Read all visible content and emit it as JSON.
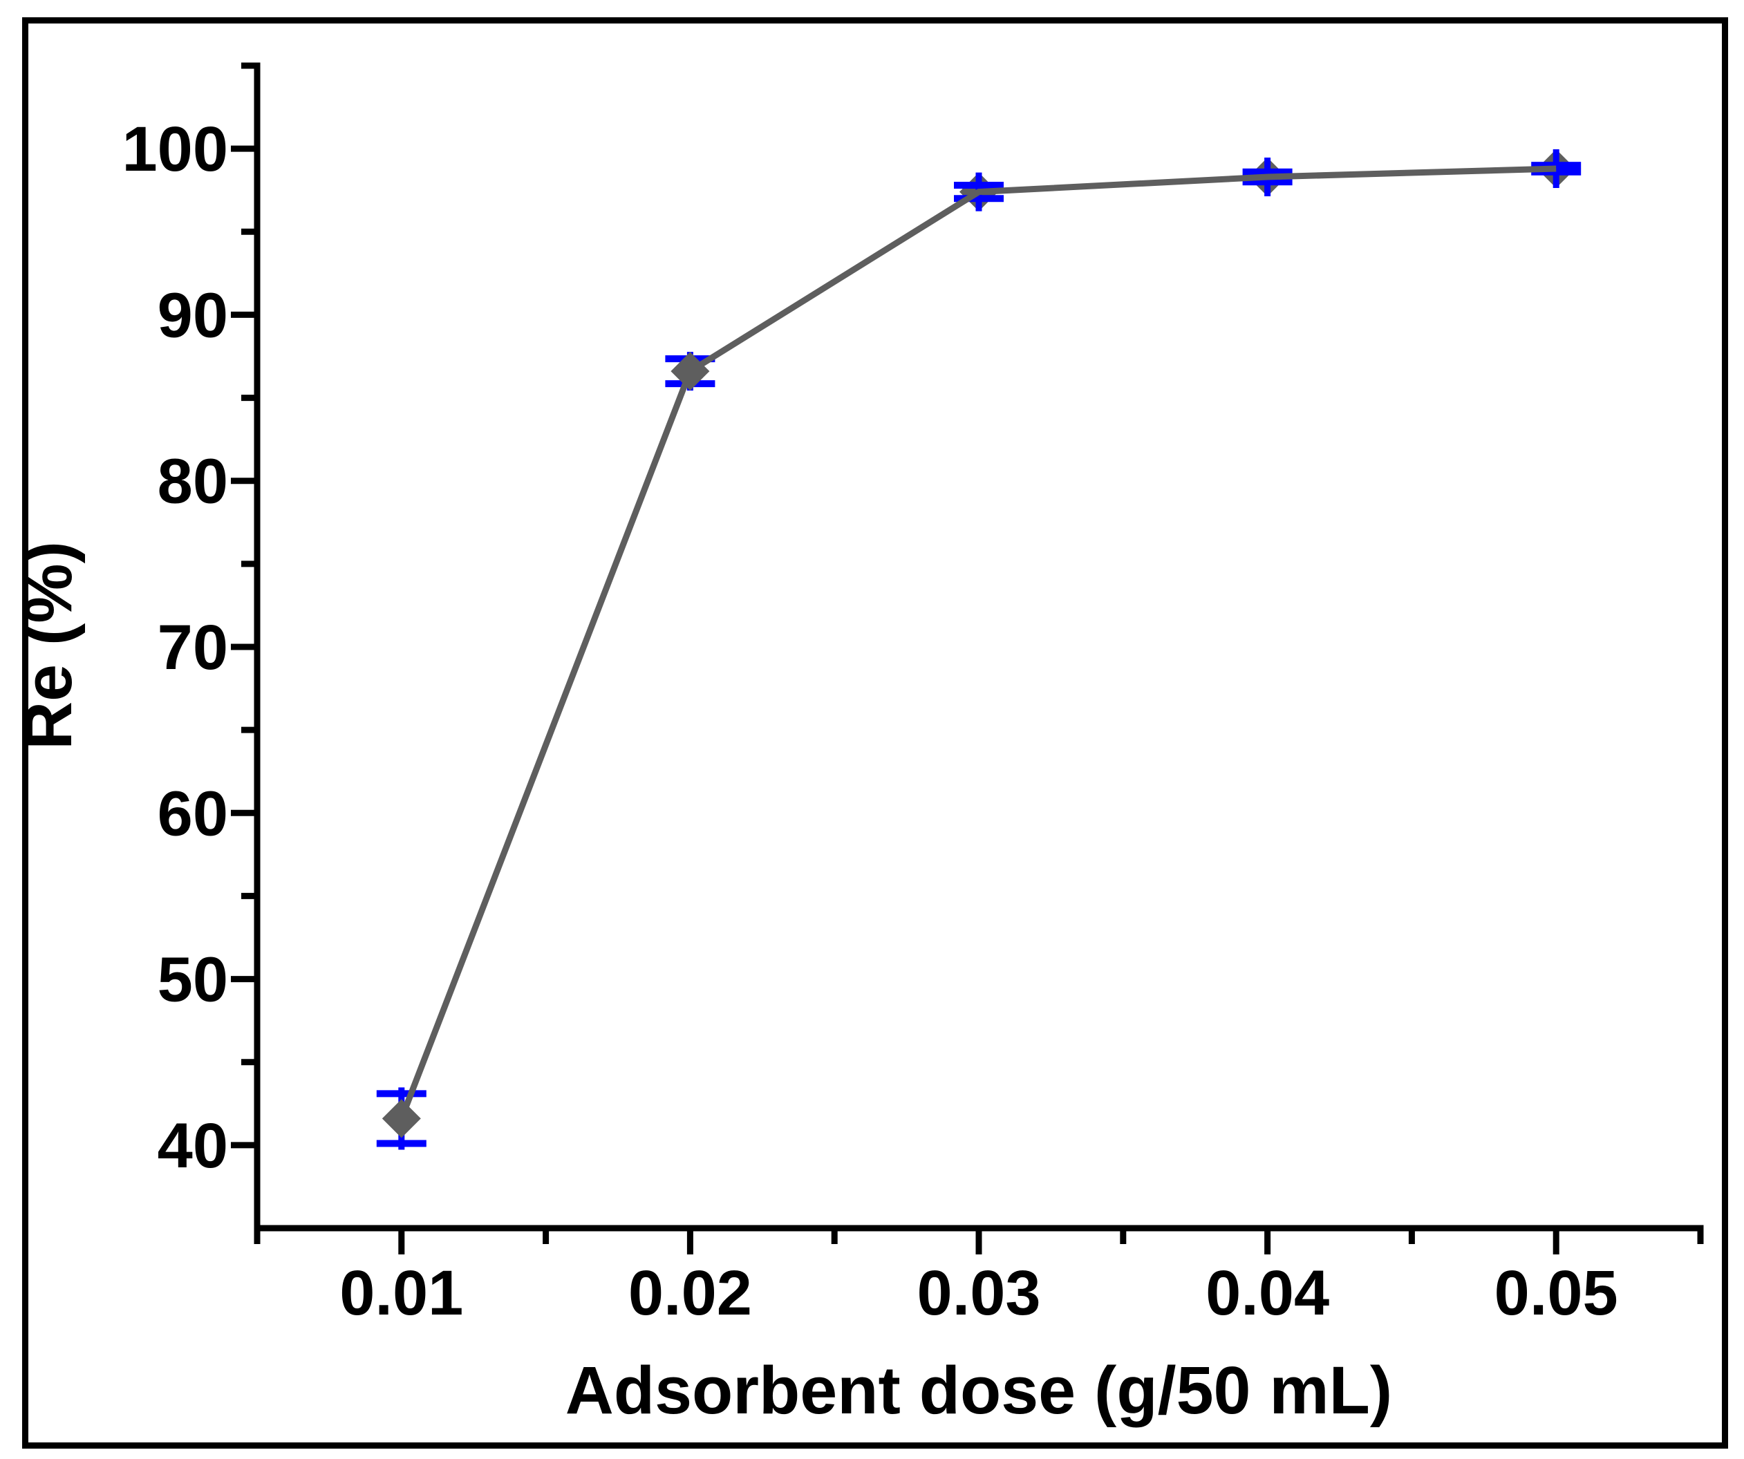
{
  "figure": {
    "background": "#FFFFFF",
    "border_color": "#000000"
  },
  "chart_data": {
    "type": "line",
    "title": "",
    "xlabel": "Adsorbent dose (g/50 mL)",
    "ylabel": "Re (%)",
    "x": [
      0.01,
      0.02,
      0.03,
      0.04,
      0.05
    ],
    "series": [
      {
        "name": "Re (%)",
        "values": [
          41.6,
          86.6,
          97.4,
          98.3,
          98.8
        ],
        "y_error": [
          1.5,
          0.75,
          0.4,
          0.3,
          0.2
        ],
        "line_color": "#5E5E5E",
        "marker": "diamond",
        "marker_color": "#5E5E5E",
        "error_bar_color": "#0000FE"
      }
    ],
    "xlim": [
      0.005,
      0.055
    ],
    "ylim": [
      35,
      105
    ],
    "x_major_ticks": [
      "0.01",
      "0.02",
      "0.03",
      "0.04",
      "0.05"
    ],
    "x_minor_ticks": [
      0.005,
      0.015,
      0.025,
      0.035,
      0.045,
      0.055
    ],
    "y_major_ticks": [
      "40",
      "50",
      "60",
      "70",
      "80",
      "90",
      "100"
    ],
    "y_minor_ticks": [
      45,
      55,
      65,
      75,
      85,
      95,
      105
    ],
    "grid": false,
    "legend": false,
    "axis_color": "#000000"
  }
}
